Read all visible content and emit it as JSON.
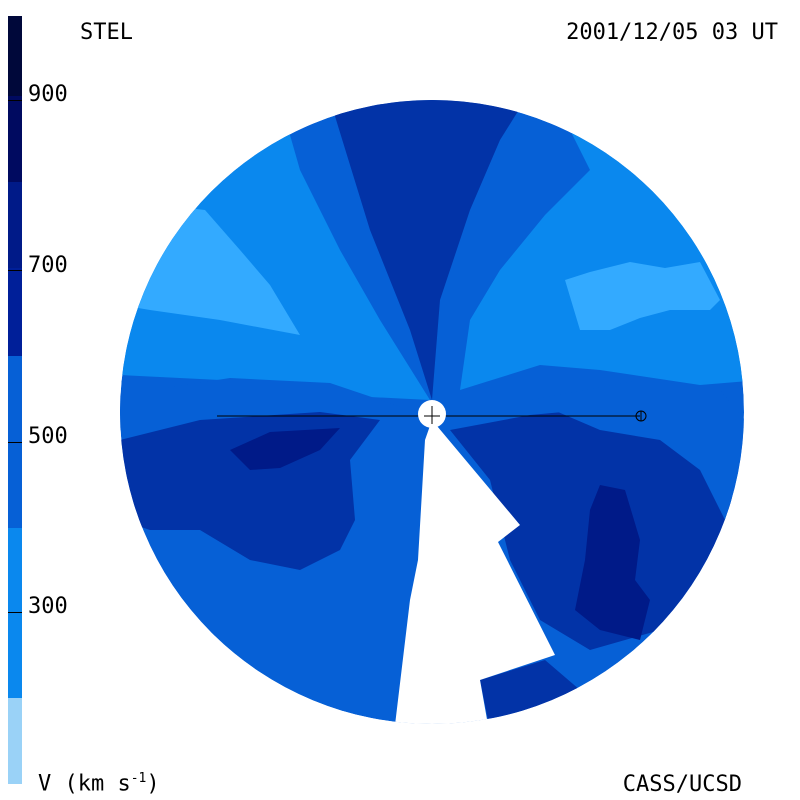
{
  "header": {
    "observatory": "STEL",
    "timestamp": "2001/12/05 03 UT"
  },
  "footer": {
    "credit": "CASS/UCSD",
    "units_prefix": "V (km s",
    "units_exp": "-1",
    "units_suffix": ")"
  },
  "colorbar": {
    "ticks": [
      "900",
      "700",
      "500",
      "300"
    ],
    "tick_values": [
      900,
      700,
      500,
      300
    ],
    "range": [
      100,
      1000
    ],
    "colors": [
      "#9ad2f7",
      "#33aaff",
      "#0a88ee",
      "#0660d6",
      "#0233a7",
      "#001a88",
      "#000a60",
      "#00083a"
    ]
  },
  "map": {
    "palette": {
      "very_light": "#33aaff",
      "light": "#0a88ee",
      "medium": "#0660d6",
      "dark": "#0233a7",
      "darkest": "#001a88",
      "background": "#ffffff",
      "earth_marker": "#000000"
    }
  }
}
